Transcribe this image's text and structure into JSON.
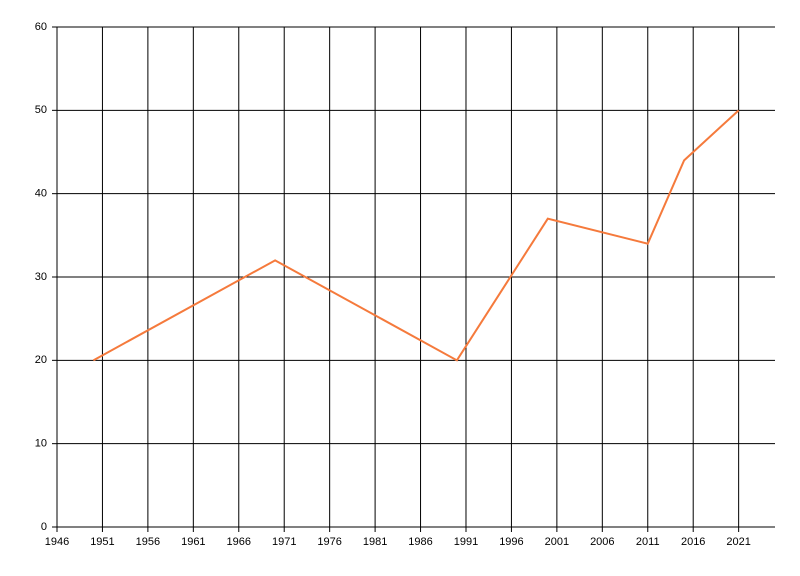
{
  "chart_data": {
    "type": "line",
    "x": [
      1950,
      1970,
      1990,
      2000,
      2011,
      2015,
      2021
    ],
    "series": [
      {
        "color": "#f57a3c",
        "values": [
          20,
          32,
          20,
          37,
          34,
          44,
          50
        ]
      }
    ],
    "xlim": [
      1946,
      2025
    ],
    "xticks": [
      1946,
      1951,
      1956,
      1961,
      1966,
      1971,
      1976,
      1981,
      1986,
      1991,
      1996,
      2001,
      2006,
      2011,
      2016,
      2021
    ],
    "ylim": [
      0,
      60
    ],
    "yticks": [
      0,
      10,
      20,
      30,
      40,
      50,
      60
    ],
    "grid": true
  }
}
